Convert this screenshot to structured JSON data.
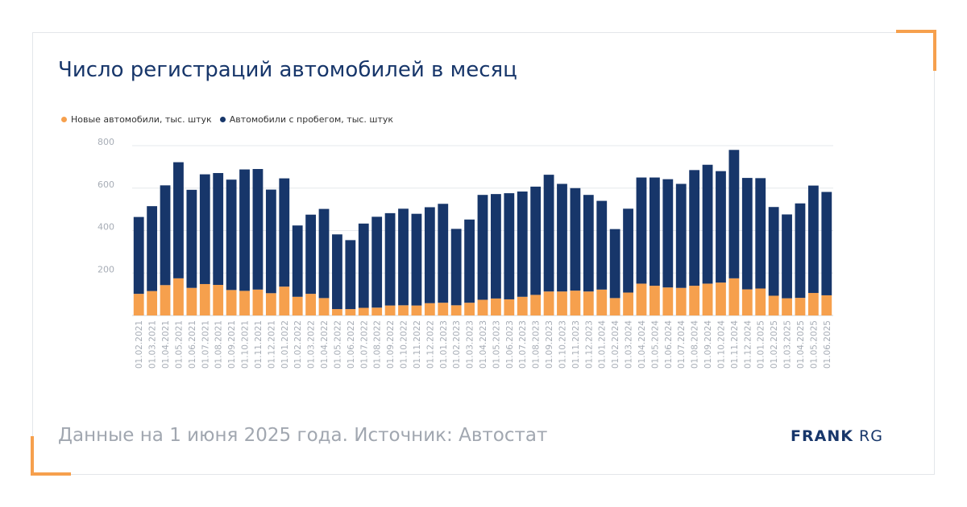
{
  "title": "Число регистраций автомобилей в месяц",
  "footer": "Данные на 1 июня 2025 года. Источник: Автостат",
  "brand": {
    "bold": "FRANK",
    "light": "RG"
  },
  "colors": {
    "new": "#f6a04d",
    "used": "#17366a",
    "accent": "#f6a04d"
  },
  "chart_data": {
    "type": "bar",
    "stacked": true,
    "legend_position": "top-left",
    "grid": true,
    "ylim": [
      0,
      800
    ],
    "yticks": [
      200,
      400,
      600,
      800
    ],
    "categories": [
      "01.02.2021",
      "01.03.2021",
      "01.04.2021",
      "01.05.2021",
      "01.06.2021",
      "01.07.2021",
      "01.08.2021",
      "01.09.2021",
      "01.10.2021",
      "01.11.2021",
      "01.12.2021",
      "01.01.2022",
      "01.02.2022",
      "01.03.2022",
      "01.04.2022",
      "01.05.2022",
      "01.06.2022",
      "01.07.2022",
      "01.08.2022",
      "01.09.2022",
      "01.10.2022",
      "01.11.2022",
      "01.12.2022",
      "01.01.2023",
      "01.02.2023",
      "01.03.2023",
      "01.04.2023",
      "01.05.2023",
      "01.06.2023",
      "01.07.2023",
      "01.08.2023",
      "01.09.2023",
      "01.10.2023",
      "01.11.2023",
      "01.12.2023",
      "01.01.2024",
      "01.02.2024",
      "01.03.2024",
      "01.04.2024",
      "01.05.2024",
      "01.06.2024",
      "01.07.2024",
      "01.08.2024",
      "01.09.2024",
      "01.10.2024",
      "01.11.2024",
      "01.12.2024",
      "01.01.2025",
      "01.02.2025",
      "01.03.2025",
      "01.04.2025",
      "01.05.2025",
      "01.06.2025"
    ],
    "series": [
      {
        "name": "Новые автомобили, тыс. штук",
        "values": [
          102,
          115,
          143,
          175,
          130,
          148,
          144,
          120,
          116,
          122,
          105,
          136,
          88,
          102,
          82,
          30,
          30,
          36,
          37,
          47,
          48,
          47,
          58,
          60,
          48,
          60,
          74,
          80,
          76,
          88,
          97,
          113,
          113,
          117,
          113,
          122,
          82,
          108,
          150,
          140,
          132,
          130,
          140,
          150,
          155,
          175,
          123,
          127,
          93,
          81,
          83,
          106,
          95
        ]
      },
      {
        "name": "Автомобили с пробегом, тыс. штук",
        "values": [
          362,
          400,
          470,
          547,
          462,
          517,
          527,
          520,
          572,
          568,
          488,
          510,
          336,
          373,
          420,
          352,
          325,
          397,
          428,
          435,
          455,
          432,
          452,
          466,
          360,
          392,
          494,
          492,
          500,
          496,
          510,
          550,
          507,
          483,
          455,
          418,
          325,
          395,
          500,
          510,
          510,
          490,
          545,
          560,
          525,
          605,
          525,
          520,
          418,
          395,
          445,
          506,
          487
        ]
      }
    ]
  }
}
